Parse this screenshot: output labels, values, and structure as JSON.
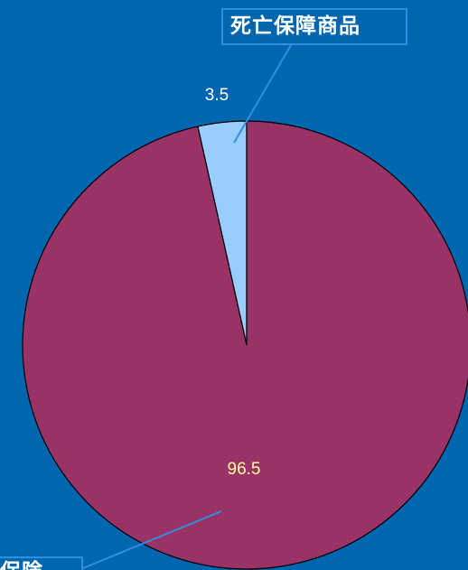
{
  "chart_data": {
    "type": "pie",
    "title": "",
    "start_angle_deg": 0,
    "direction": "counterclockwise",
    "slices": [
      {
        "label": "死亡保障商品",
        "value": 3.5,
        "color": "#99ccff",
        "label_color": "#ffffff"
      },
      {
        "label": "保険",
        "value": 96.5,
        "color": "#993366",
        "label_color": "#ffff99"
      }
    ],
    "data_labels": [
      "3.5",
      "96.5"
    ],
    "callouts": [
      "死亡保障商品",
      "保険"
    ],
    "colors": {
      "background": "#0066b0",
      "outline": "#000000",
      "leader_line": "#2f8fe0"
    }
  }
}
